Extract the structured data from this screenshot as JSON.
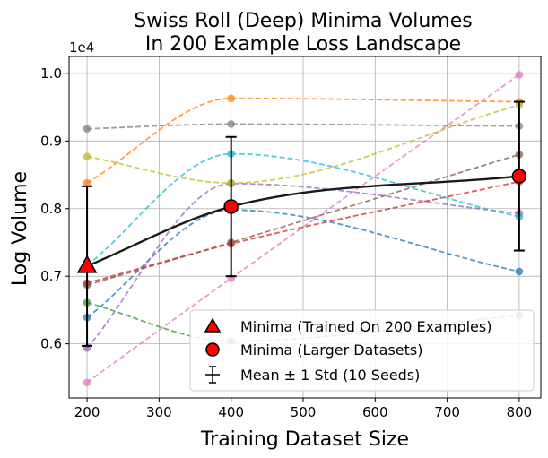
{
  "chart_data": {
    "type": "line",
    "title": [
      "Swiss Roll (Deep) Minima Volumes",
      "In 200 Example Loss Landscape"
    ],
    "xlabel": "Training Dataset Size",
    "ylabel": "Log Volume",
    "y_offset_label": "1e4",
    "xlim": [
      175,
      830
    ],
    "ylim": [
      0.52,
      1.025
    ],
    "x_ticks": [
      200,
      300,
      400,
      500,
      600,
      700,
      800
    ],
    "y_ticks": [
      0.6,
      0.7,
      0.8,
      0.9,
      1.0
    ],
    "x_tick_labels": [
      "200",
      "300",
      "400",
      "500",
      "600",
      "700",
      "800"
    ],
    "y_tick_labels": [
      "0.6",
      "0.7",
      "0.8",
      "0.9",
      "1.0"
    ],
    "grid": true,
    "x": [
      200,
      400,
      800
    ],
    "seeds": [
      {
        "name": "seed-1",
        "color": "#1f77b4",
        "values": [
          0.639,
          0.798,
          0.707
        ]
      },
      {
        "name": "seed-2",
        "color": "#ff7f0e",
        "values": [
          0.838,
          0.963,
          0.958
        ]
      },
      {
        "name": "seed-3",
        "color": "#2ca02c",
        "values": [
          0.661,
          0.604,
          0.642
        ]
      },
      {
        "name": "seed-4",
        "color": "#d62728",
        "values": [
          0.69,
          0.748,
          0.84
        ]
      },
      {
        "name": "seed-5",
        "color": "#9467bd",
        "values": [
          0.594,
          0.837,
          0.793
        ]
      },
      {
        "name": "seed-6",
        "color": "#8c564b",
        "values": [
          0.687,
          0.75,
          0.88
        ]
      },
      {
        "name": "seed-7",
        "color": "#e377c2",
        "values": [
          0.543,
          0.697,
          0.998
        ]
      },
      {
        "name": "seed-8",
        "color": "#7f7f7f",
        "values": [
          0.918,
          0.925,
          0.922
        ]
      },
      {
        "name": "seed-9",
        "color": "#bcbd22",
        "values": [
          0.877,
          0.838,
          0.953
        ]
      },
      {
        "name": "seed-10",
        "color": "#17becf",
        "values": [
          0.716,
          0.881,
          0.788
        ]
      }
    ],
    "mean": {
      "values": [
        0.715,
        0.803,
        0.848
      ],
      "std": [
        0.118,
        0.103,
        0.11
      ]
    },
    "legend": {
      "placement": "lower-right",
      "entries": [
        "Minima (Trained On 200 Examples)",
        "Minima (Larger Datasets)",
        "Mean ± 1 Std (10 Seeds)"
      ]
    }
  }
}
